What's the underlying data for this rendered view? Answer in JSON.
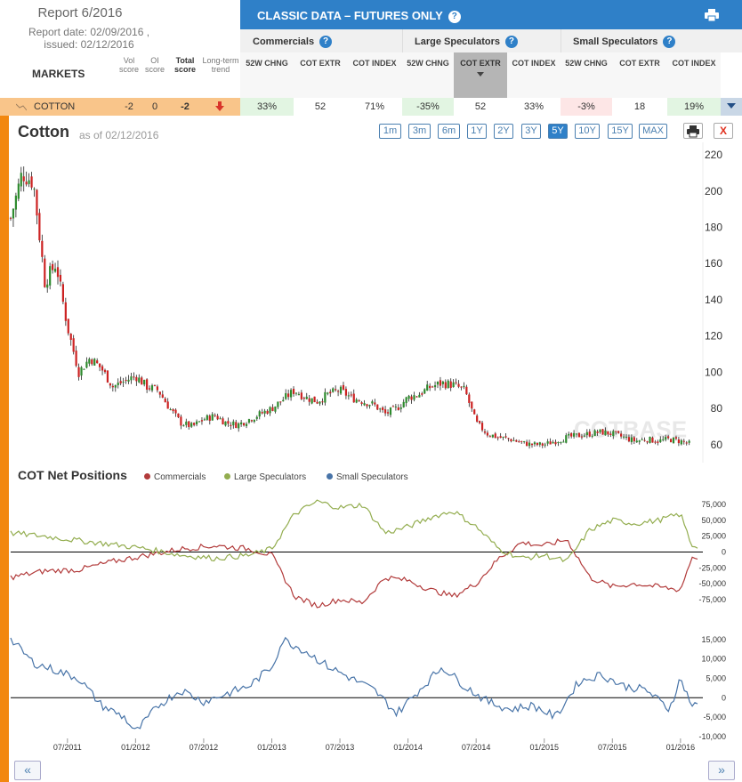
{
  "header": {
    "report_title": "Report 6/2016",
    "report_date": "Report date: 02/09/2016 ,",
    "issued": "issued: 02/12/2016",
    "markets_label": "MARKETS",
    "vol_score": "Vol score",
    "oi_score": "OI score",
    "total_score": "Total score",
    "long_term_trend": "Long-term trend",
    "classic_title": "CLASSIC DATA – FUTURES ONLY",
    "help": "?"
  },
  "groups": [
    {
      "label": "Commercials",
      "columns": [
        "52W CHNG",
        "COT EXTR",
        "COT INDEX"
      ]
    },
    {
      "label": "Large Speculators",
      "columns": [
        "52W CHNG",
        "COT EXTR",
        "COT INDEX"
      ]
    },
    {
      "label": "Small Speculators",
      "columns": [
        "52W CHNG",
        "COT EXTR",
        "COT INDEX"
      ]
    }
  ],
  "row": {
    "market": "COTTON",
    "vol_score": "-2",
    "oi_score": "0",
    "total_score": "-2",
    "cells": [
      "33%",
      "52",
      "71%",
      "-35%",
      "52",
      "33%",
      "-3%",
      "18",
      "19%"
    ]
  },
  "chart": {
    "title": "Cotton",
    "as_of": "as of 02/12/2016",
    "ranges": [
      "1m",
      "3m",
      "6m",
      "1Y",
      "2Y",
      "3Y",
      "5Y",
      "10Y",
      "15Y",
      "MAX"
    ],
    "active_range": "5Y",
    "close_label": "X",
    "watermark": "COTBASE"
  },
  "cot_section": {
    "title": "COT Net Positions",
    "legend": [
      "Commercials",
      "Large Speculators",
      "Small Speculators"
    ]
  },
  "nav": {
    "prev": "«",
    "next": "»"
  },
  "colors": {
    "commercials": "#b23b3b",
    "large_speculators": "#93ad4f",
    "small_speculators": "#4874a8",
    "up_candle": "#2e8b2e",
    "down_candle": "#cc2222",
    "accent": "#2f80c8"
  },
  "chart_data": [
    {
      "type": "candlestick",
      "title": "Cotton",
      "y_ticks": [
        60,
        80,
        100,
        120,
        140,
        160,
        180,
        200,
        220
      ],
      "ylim": [
        55,
        222
      ],
      "x_ticks": [
        "07/2011",
        "01/2012",
        "07/2012",
        "01/2013",
        "07/2013",
        "01/2014",
        "07/2014",
        "01/2015",
        "07/2015",
        "01/2016"
      ],
      "xlim": [
        "2011-02",
        "2016-02"
      ],
      "close_path": [
        [
          "2011-02",
          185
        ],
        [
          "2011-03",
          210
        ],
        [
          "2011-04",
          205
        ],
        [
          "2011-05",
          150
        ],
        [
          "2011-06",
          160
        ],
        [
          "2011-07",
          125
        ],
        [
          "2011-08",
          100
        ],
        [
          "2011-09",
          108
        ],
        [
          "2011-10",
          102
        ],
        [
          "2011-11",
          92
        ],
        [
          "2011-12",
          95
        ],
        [
          "2012-01",
          98
        ],
        [
          "2012-02",
          92
        ],
        [
          "2012-03",
          90
        ],
        [
          "2012-04",
          80
        ],
        [
          "2012-05",
          72
        ],
        [
          "2012-06",
          70
        ],
        [
          "2012-07",
          74
        ],
        [
          "2012-08",
          76
        ],
        [
          "2012-09",
          72
        ],
        [
          "2012-10",
          71
        ],
        [
          "2012-11",
          74
        ],
        [
          "2012-12",
          77
        ],
        [
          "2013-01",
          80
        ],
        [
          "2013-02",
          85
        ],
        [
          "2013-03",
          90
        ],
        [
          "2013-04",
          86
        ],
        [
          "2013-05",
          84
        ],
        [
          "2013-06",
          88
        ],
        [
          "2013-07",
          90
        ],
        [
          "2013-08",
          86
        ],
        [
          "2013-09",
          84
        ],
        [
          "2013-10",
          82
        ],
        [
          "2013-11",
          77
        ],
        [
          "2013-12",
          80
        ],
        [
          "2014-01",
          86
        ],
        [
          "2014-02",
          88
        ],
        [
          "2014-03",
          92
        ],
        [
          "2014-04",
          94
        ],
        [
          "2014-05",
          93
        ],
        [
          "2014-06",
          90
        ],
        [
          "2014-07",
          72
        ],
        [
          "2014-08",
          66
        ],
        [
          "2014-09",
          64
        ],
        [
          "2014-10",
          63
        ],
        [
          "2014-11",
          61
        ],
        [
          "2014-12",
          60
        ],
        [
          "2015-01",
          60
        ],
        [
          "2015-02",
          62
        ],
        [
          "2015-03",
          64
        ],
        [
          "2015-04",
          65
        ],
        [
          "2015-05",
          66
        ],
        [
          "2015-06",
          67
        ],
        [
          "2015-07",
          66
        ],
        [
          "2015-08",
          64
        ],
        [
          "2015-09",
          62
        ],
        [
          "2015-10",
          63
        ],
        [
          "2015-11",
          62
        ],
        [
          "2015-12",
          63
        ],
        [
          "2016-01",
          62
        ],
        [
          "2016-02",
          60
        ]
      ]
    },
    {
      "type": "line",
      "title": "COT Net Positions",
      "y_ticks": [
        75000,
        50000,
        25000,
        0,
        -25000,
        -50000,
        -75000
      ],
      "ylim": [
        -95000,
        95000
      ],
      "series": [
        {
          "name": "Commercials",
          "points": [
            [
              "2011-02",
              -40000
            ],
            [
              "2011-05",
              -30000
            ],
            [
              "2011-08",
              -28000
            ],
            [
              "2011-11",
              -15000
            ],
            [
              "2012-02",
              -5000
            ],
            [
              "2012-05",
              5000
            ],
            [
              "2012-08",
              10000
            ],
            [
              "2012-11",
              5000
            ],
            [
              "2013-01",
              -5000
            ],
            [
              "2013-03",
              -70000
            ],
            [
              "2013-05",
              -85000
            ],
            [
              "2013-07",
              -75000
            ],
            [
              "2013-09",
              -80000
            ],
            [
              "2013-11",
              -40000
            ],
            [
              "2014-01",
              -45000
            ],
            [
              "2014-03",
              -60000
            ],
            [
              "2014-05",
              -70000
            ],
            [
              "2014-07",
              -50000
            ],
            [
              "2014-09",
              -10000
            ],
            [
              "2014-11",
              15000
            ],
            [
              "2015-01",
              10000
            ],
            [
              "2015-03",
              20000
            ],
            [
              "2015-05",
              -40000
            ],
            [
              "2015-07",
              -55000
            ],
            [
              "2015-09",
              -50000
            ],
            [
              "2015-11",
              -55000
            ],
            [
              "2016-01",
              -60000
            ],
            [
              "2016-02",
              -8000
            ]
          ]
        },
        {
          "name": "Large Speculators",
          "points": [
            [
              "2011-02",
              30000
            ],
            [
              "2011-05",
              25000
            ],
            [
              "2011-08",
              18000
            ],
            [
              "2011-11",
              12000
            ],
            [
              "2012-02",
              5000
            ],
            [
              "2012-05",
              -5000
            ],
            [
              "2012-08",
              -10000
            ],
            [
              "2012-11",
              -5000
            ],
            [
              "2013-01",
              5000
            ],
            [
              "2013-03",
              60000
            ],
            [
              "2013-05",
              80000
            ],
            [
              "2013-07",
              70000
            ],
            [
              "2013-09",
              75000
            ],
            [
              "2013-11",
              30000
            ],
            [
              "2014-01",
              40000
            ],
            [
              "2014-03",
              55000
            ],
            [
              "2014-05",
              65000
            ],
            [
              "2014-07",
              40000
            ],
            [
              "2014-09",
              5000
            ],
            [
              "2014-11",
              -10000
            ],
            [
              "2015-01",
              -5000
            ],
            [
              "2015-03",
              -15000
            ],
            [
              "2015-05",
              35000
            ],
            [
              "2015-07",
              50000
            ],
            [
              "2015-09",
              45000
            ],
            [
              "2015-11",
              50000
            ],
            [
              "2016-01",
              60000
            ],
            [
              "2016-02",
              10000
            ]
          ]
        }
      ]
    },
    {
      "type": "line",
      "y_ticks": [
        15000,
        10000,
        5000,
        0,
        -5000,
        -10000
      ],
      "ylim": [
        -10500,
        17500
      ],
      "series": [
        {
          "name": "Small Speculators",
          "points": [
            [
              "2011-02",
              15000
            ],
            [
              "2011-04",
              9000
            ],
            [
              "2011-06",
              7000
            ],
            [
              "2011-08",
              5000
            ],
            [
              "2011-10",
              -2000
            ],
            [
              "2011-12",
              -5000
            ],
            [
              "2012-01",
              -9000
            ],
            [
              "2012-03",
              -2000
            ],
            [
              "2012-05",
              2000
            ],
            [
              "2012-07",
              -1000
            ],
            [
              "2012-09",
              1000
            ],
            [
              "2012-11",
              3000
            ],
            [
              "2013-01",
              8000
            ],
            [
              "2013-02",
              15000
            ],
            [
              "2013-04",
              12000
            ],
            [
              "2013-06",
              8000
            ],
            [
              "2013-08",
              5000
            ],
            [
              "2013-10",
              2000
            ],
            [
              "2013-12",
              -4000
            ],
            [
              "2014-02",
              2000
            ],
            [
              "2014-04",
              8000
            ],
            [
              "2014-06",
              3000
            ],
            [
              "2014-08",
              -1000
            ],
            [
              "2014-10",
              -3000
            ],
            [
              "2014-12",
              -2000
            ],
            [
              "2015-02",
              -5000
            ],
            [
              "2015-04",
              4000
            ],
            [
              "2015-06",
              6000
            ],
            [
              "2015-08",
              3000
            ],
            [
              "2015-10",
              2000
            ],
            [
              "2015-12",
              -3000
            ],
            [
              "2016-01",
              5000
            ],
            [
              "2016-02",
              -2000
            ]
          ]
        }
      ]
    }
  ]
}
